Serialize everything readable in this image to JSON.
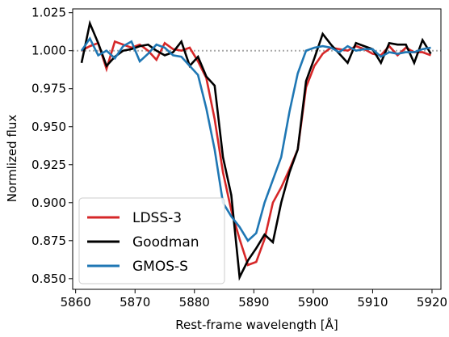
{
  "chart_data": {
    "type": "line",
    "title": "",
    "xlabel": "Rest-frame wavelength [Å]",
    "ylabel": "Normlized flux",
    "xlim": [
      5859.5,
      5921.5
    ],
    "ylim": [
      0.843,
      1.0275
    ],
    "xticks": [
      5860,
      5870,
      5880,
      5890,
      5900,
      5910,
      5920
    ],
    "xtick_labels": [
      "5860",
      "5870",
      "5880",
      "5890",
      "5900",
      "5910",
      "5920"
    ],
    "yticks": [
      0.85,
      0.875,
      0.9,
      0.925,
      0.95,
      0.975,
      1.0,
      1.025
    ],
    "ytick_labels": [
      "0.850",
      "0.875",
      "0.900",
      "0.925",
      "0.950",
      "0.975",
      "1.000",
      "1.025"
    ],
    "grid": false,
    "legend_position": "lower-left",
    "reference_line": {
      "y": 1.0,
      "style": "dotted",
      "color": "#aaaaaa"
    },
    "series": [
      {
        "name": "LDSS-3",
        "color": "#d62728",
        "x": [
          5861.0,
          5862.4,
          5863.8,
          5865.2,
          5866.6,
          5868.0,
          5869.4,
          5870.8,
          5872.2,
          5873.6,
          5875.0,
          5876.4,
          5877.8,
          5879.2,
          5880.6,
          5882.0,
          5883.4,
          5884.8,
          5886.2,
          5887.6,
          5889.0,
          5890.4,
          5891.8,
          5893.2,
          5894.6,
          5896.0,
          5897.4,
          5898.8,
          5900.2,
          5901.6,
          5903.0,
          5904.4,
          5905.8,
          5907.2,
          5908.6,
          5910.0,
          5911.4,
          5912.8,
          5914.2,
          5915.6,
          5917.0,
          5918.4,
          5919.8
        ],
        "y": [
          1.0,
          1.003,
          1.005,
          0.988,
          1.006,
          1.004,
          1.002,
          1.004,
          1.0,
          0.994,
          1.005,
          1.001,
          1.0,
          1.002,
          0.993,
          0.982,
          0.955,
          0.92,
          0.895,
          0.876,
          0.859,
          0.861,
          0.876,
          0.9,
          0.91,
          0.922,
          0.935,
          0.976,
          0.99,
          0.998,
          1.002,
          1.001,
          1.0,
          1.003,
          1.001,
          0.998,
          0.997,
          1.003,
          0.997,
          1.002,
          0.999,
          0.999,
          0.997
        ]
      },
      {
        "name": "Goodman",
        "color": "#000000",
        "x": [
          5861.0,
          5862.4,
          5863.8,
          5865.2,
          5866.6,
          5868.0,
          5869.4,
          5870.8,
          5872.2,
          5873.6,
          5875.0,
          5876.4,
          5877.8,
          5879.2,
          5880.6,
          5882.0,
          5883.4,
          5884.8,
          5886.2,
          5887.6,
          5889.0,
          5890.4,
          5891.8,
          5893.2,
          5894.6,
          5896.0,
          5897.4,
          5898.8,
          5900.2,
          5901.6,
          5903.0,
          5904.4,
          5905.8,
          5907.2,
          5908.6,
          5910.0,
          5911.4,
          5912.8,
          5914.2,
          5915.6,
          5917.0,
          5918.4,
          5919.8
        ],
        "y": [
          0.992,
          1.018,
          1.005,
          0.99,
          0.996,
          1.0,
          1.001,
          1.003,
          1.004,
          1.0,
          0.997,
          0.999,
          1.006,
          0.99,
          0.996,
          0.983,
          0.977,
          0.93,
          0.905,
          0.851,
          0.862,
          0.87,
          0.879,
          0.874,
          0.9,
          0.92,
          0.935,
          0.98,
          0.995,
          1.011,
          1.004,
          0.998,
          0.992,
          1.005,
          1.003,
          1.001,
          0.992,
          1.005,
          1.004,
          1.004,
          0.992,
          1.007,
          0.998
        ]
      },
      {
        "name": "GMOS-S",
        "color": "#1f77b4",
        "x": [
          5861.0,
          5862.4,
          5863.8,
          5865.2,
          5866.6,
          5868.0,
          5869.4,
          5870.8,
          5872.2,
          5873.6,
          5875.0,
          5876.4,
          5877.8,
          5879.2,
          5880.6,
          5882.0,
          5883.4,
          5884.8,
          5886.2,
          5887.6,
          5889.0,
          5890.4,
          5891.8,
          5893.2,
          5894.6,
          5896.0,
          5897.4,
          5898.8,
          5900.2,
          5901.6,
          5903.0,
          5904.4,
          5905.8,
          5907.2,
          5908.6,
          5910.0,
          5911.4,
          5912.8,
          5914.2,
          5915.6,
          5917.0,
          5918.4,
          5919.8
        ],
        "y": [
          1.0,
          1.008,
          0.997,
          1.0,
          0.995,
          1.003,
          1.006,
          0.993,
          0.998,
          1.004,
          1.002,
          0.997,
          0.996,
          0.99,
          0.984,
          0.962,
          0.935,
          0.9,
          0.891,
          0.884,
          0.875,
          0.88,
          0.9,
          0.915,
          0.93,
          0.96,
          0.985,
          1.0,
          1.002,
          1.003,
          1.002,
          0.999,
          1.003,
          1.0,
          1.001,
          1.001,
          0.996,
          0.999,
          0.998,
          0.999,
          0.999,
          1.001,
          1.002
        ]
      }
    ]
  }
}
